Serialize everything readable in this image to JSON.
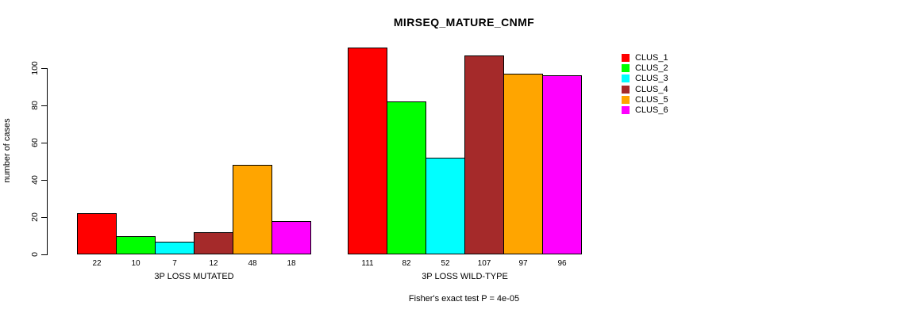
{
  "chart_data": {
    "type": "bar",
    "title": "MIRSEQ_MATURE_CNMF",
    "ylabel": "number of cases",
    "xlabel": "",
    "ylim": [
      0,
      100
    ],
    "yticks": [
      0,
      20,
      40,
      60,
      80,
      100
    ],
    "grid": false,
    "legend_position": "right",
    "categories": [
      "CLUS_1",
      "CLUS_2",
      "CLUS_3",
      "CLUS_4",
      "CLUS_5",
      "CLUS_6"
    ],
    "series_colors": [
      "#FF0000",
      "#00FF00",
      "#00FFFF",
      "#A52A2A",
      "#FFA500",
      "#FF00FF"
    ],
    "groups": [
      {
        "label": "3P LOSS MUTATED",
        "values": [
          22,
          10,
          7,
          12,
          48,
          18
        ]
      },
      {
        "label": "3P LOSS WILD-TYPE",
        "values": [
          111,
          82,
          52,
          107,
          97,
          96
        ]
      }
    ],
    "legend": [
      {
        "label": "CLUS_1",
        "color": "#FF0000"
      },
      {
        "label": "CLUS_2",
        "color": "#00FF00"
      },
      {
        "label": "CLUS_3",
        "color": "#00FFFF"
      },
      {
        "label": "CLUS_4",
        "color": "#A52A2A"
      },
      {
        "label": "CLUS_5",
        "color": "#FFA500"
      },
      {
        "label": "CLUS_6",
        "color": "#FF00FF"
      }
    ],
    "annotation": "Fisher's exact test P = 4e-05"
  }
}
